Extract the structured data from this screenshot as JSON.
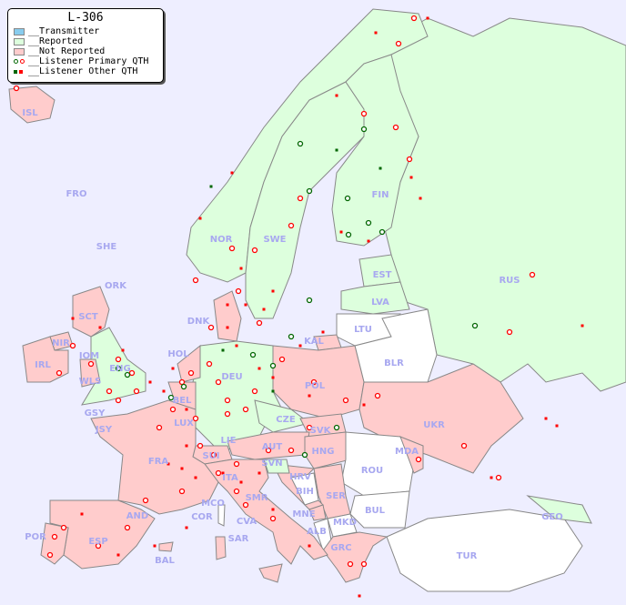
{
  "legend": {
    "title": "L-306",
    "items": [
      {
        "label": "__Transmitter",
        "color": "#88ccee"
      },
      {
        "label": "__Reported",
        "color": "#ddffdd"
      },
      {
        "label": "__Not Reported",
        "color": "#ffcccc"
      },
      {
        "label": "__Listener Primary QTH",
        "colors": [
          "#006600",
          "#ff0000"
        ]
      },
      {
        "label": "__Listener Other QTH",
        "colors": [
          "#006600",
          "#ff0000"
        ]
      }
    ]
  },
  "colors": {
    "sea": "#eeeeff",
    "reported": "#ddffdd",
    "not_reported": "#ffcccc",
    "no_data": "#ffffff",
    "border": "#888888",
    "label": "#a8a8f0"
  },
  "countries": {
    "reported": [
      "NOR",
      "SWE",
      "FIN",
      "EST",
      "LVA",
      "RUS",
      "DEU",
      "ENG",
      "CZE",
      "LIE",
      "SVN",
      "GEO"
    ],
    "not_reported": [
      "ISL",
      "IRL",
      "NIR",
      "SCT",
      "WLS",
      "IOM",
      "FRA",
      "ESP",
      "POR",
      "AND",
      "BEL",
      "HOL",
      "LUX",
      "DNK",
      "POL",
      "KAL",
      "UKR",
      "SVK",
      "HNG",
      "AUT",
      "SUI",
      "ITA",
      "SMR",
      "CVA",
      "MCO",
      "COR",
      "SAR",
      "BAL",
      "HRV",
      "SER",
      "MNE",
      "MKD",
      "GRC",
      "MDA",
      "GSY",
      "JSY",
      "ORK",
      "SHE",
      "FRO"
    ],
    "no_data": [
      "LTU",
      "BLR",
      "ROU",
      "BUL",
      "BIH",
      "ALB",
      "TUR"
    ]
  },
  "labels": [
    "ISL",
    "FRO",
    "SHE",
    "ORK",
    "NOR",
    "SWE",
    "FIN",
    "EST",
    "LVA",
    "LTU",
    "KAL",
    "BLR",
    "RUS",
    "DNK",
    "HOL",
    "DEU",
    "POL",
    "SCT",
    "NIR",
    "IRL",
    "IOM",
    "ENG",
    "WLS",
    "GSY",
    "JSY",
    "BEL",
    "LUX",
    "FRA",
    "SUI",
    "LIE",
    "AUT",
    "CZE",
    "SVK",
    "HNG",
    "UKR",
    "MDA",
    "ROU",
    "SVN",
    "HRV",
    "BIH",
    "SER",
    "MNE",
    "ALB",
    "MKD",
    "GRC",
    "BUL",
    "TUR",
    "GEO",
    "ITA",
    "SMR",
    "MCO",
    "COR",
    "CVA",
    "SAR",
    "AND",
    "ESP",
    "POR",
    "BAL"
  ]
}
